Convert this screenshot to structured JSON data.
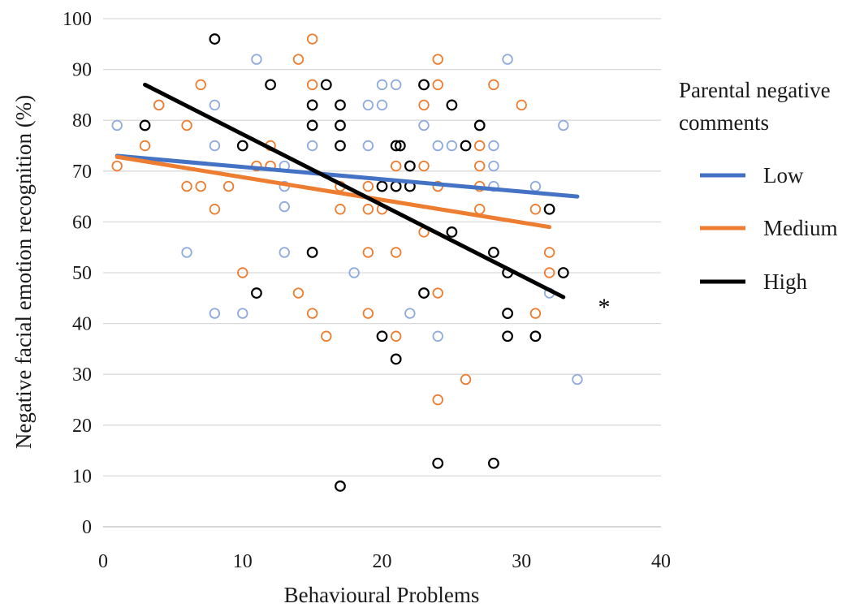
{
  "chart_data": {
    "type": "scatter",
    "title": "",
    "xlabel": "Behavioural Problems",
    "ylabel": "Negative facial emotion recognition (%)",
    "xlim": [
      0,
      40
    ],
    "ylim": [
      0,
      100
    ],
    "xticks": [
      0,
      10,
      20,
      30,
      40
    ],
    "yticks": [
      0,
      10,
      20,
      30,
      40,
      50,
      60,
      70,
      80,
      90,
      100
    ],
    "grid": "horizontal",
    "legend": {
      "title": [
        "Parental negative",
        "comments"
      ],
      "placement": "right"
    },
    "series": [
      {
        "name": "Low",
        "color": "#4472C4",
        "marker_color": "#8FAADC",
        "points": [
          [
            1,
            79
          ],
          [
            4,
            83
          ],
          [
            6,
            54
          ],
          [
            8,
            83
          ],
          [
            8,
            75
          ],
          [
            8,
            42
          ],
          [
            10,
            42
          ],
          [
            11,
            92
          ],
          [
            12,
            87
          ],
          [
            13,
            71
          ],
          [
            13,
            67
          ],
          [
            13,
            63
          ],
          [
            13,
            54
          ],
          [
            15,
            83
          ],
          [
            15,
            75
          ],
          [
            18,
            50
          ],
          [
            19,
            83
          ],
          [
            19,
            75
          ],
          [
            20,
            83
          ],
          [
            20,
            87
          ],
          [
            21,
            87
          ],
          [
            22,
            71
          ],
          [
            22,
            42
          ],
          [
            23,
            79
          ],
          [
            24,
            75
          ],
          [
            24,
            37.5
          ],
          [
            25,
            75
          ],
          [
            27,
            79
          ],
          [
            28,
            75
          ],
          [
            28,
            71
          ],
          [
            28,
            67
          ],
          [
            29,
            92
          ],
          [
            31,
            67
          ],
          [
            32,
            46
          ],
          [
            33,
            79
          ],
          [
            34,
            29
          ]
        ],
        "trend": [
          [
            1,
            73
          ],
          [
            34,
            65
          ]
        ]
      },
      {
        "name": "Medium",
        "color": "#ED7D31",
        "marker_color": "#ED7D31",
        "points": [
          [
            1,
            71
          ],
          [
            3,
            75
          ],
          [
            4,
            83
          ],
          [
            6,
            79
          ],
          [
            6,
            67
          ],
          [
            7,
            87
          ],
          [
            7,
            67
          ],
          [
            8,
            62.5
          ],
          [
            9,
            67
          ],
          [
            10,
            50
          ],
          [
            11,
            71
          ],
          [
            12,
            75
          ],
          [
            12,
            71
          ],
          [
            14,
            92
          ],
          [
            14,
            46
          ],
          [
            15,
            96
          ],
          [
            15,
            87
          ],
          [
            15,
            42
          ],
          [
            16,
            37.5
          ],
          [
            17,
            67
          ],
          [
            17,
            62.5
          ],
          [
            19,
            67
          ],
          [
            19,
            62.5
          ],
          [
            19,
            54
          ],
          [
            19,
            42
          ],
          [
            20,
            62.5
          ],
          [
            21,
            71
          ],
          [
            21,
            54
          ],
          [
            21,
            37.5
          ],
          [
            23,
            83
          ],
          [
            23,
            71
          ],
          [
            23,
            58
          ],
          [
            24,
            92
          ],
          [
            24,
            87
          ],
          [
            24,
            67
          ],
          [
            24,
            46
          ],
          [
            24,
            25
          ],
          [
            26,
            29
          ],
          [
            27,
            75
          ],
          [
            27,
            71
          ],
          [
            27,
            67
          ],
          [
            27,
            62.5
          ],
          [
            28,
            87
          ],
          [
            30,
            83
          ],
          [
            31,
            62.5
          ],
          [
            31,
            42
          ],
          [
            32,
            54
          ],
          [
            32,
            50
          ]
        ],
        "trend": [
          [
            1,
            72.8
          ],
          [
            32,
            59
          ]
        ]
      },
      {
        "name": "High",
        "color": "#000000",
        "marker_color": "#000000",
        "points": [
          [
            3,
            79
          ],
          [
            8,
            96
          ],
          [
            10,
            75
          ],
          [
            11,
            46
          ],
          [
            12,
            87
          ],
          [
            15,
            83
          ],
          [
            15,
            79
          ],
          [
            15,
            54
          ],
          [
            16,
            87
          ],
          [
            17,
            83
          ],
          [
            17,
            79
          ],
          [
            17,
            75
          ],
          [
            17,
            8
          ],
          [
            20,
            67
          ],
          [
            20,
            37.5
          ],
          [
            21,
            75
          ],
          [
            21,
            67
          ],
          [
            21,
            33
          ],
          [
            21.3,
            75
          ],
          [
            22,
            71
          ],
          [
            22,
            67
          ],
          [
            23,
            87
          ],
          [
            23,
            46
          ],
          [
            24,
            12.5
          ],
          [
            25,
            83
          ],
          [
            25,
            58
          ],
          [
            26,
            75
          ],
          [
            27,
            79
          ],
          [
            28,
            54
          ],
          [
            28,
            12.5
          ],
          [
            29,
            50
          ],
          [
            29,
            42
          ],
          [
            29,
            37.5
          ],
          [
            31,
            37.5
          ],
          [
            32,
            62.5
          ],
          [
            33,
            50
          ]
        ],
        "trend": [
          [
            3,
            87
          ],
          [
            33,
            45.2
          ]
        ]
      }
    ],
    "annotations": [
      "*"
    ]
  }
}
